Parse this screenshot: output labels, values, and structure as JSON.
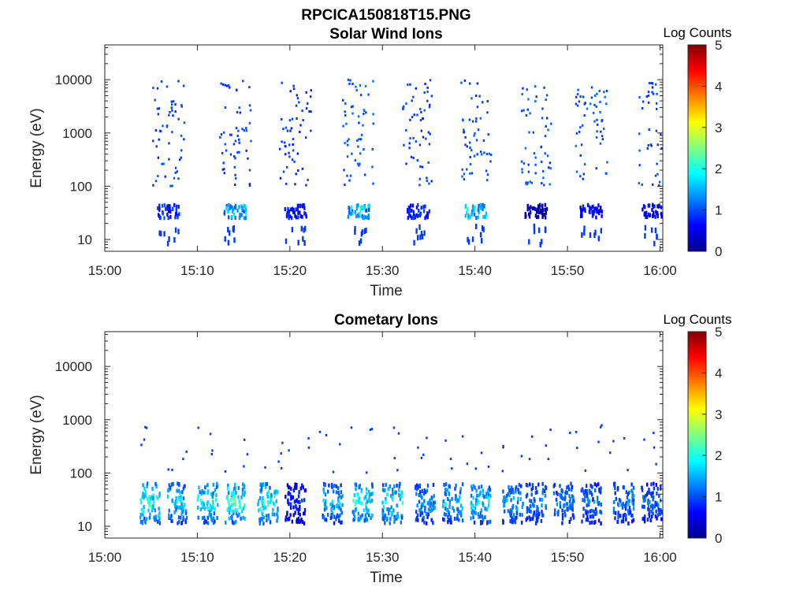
{
  "figure_title": "RPCICA150818T15.PNG",
  "chart_data": [
    {
      "type": "heatmap",
      "title": "Solar Wind Ions",
      "xlabel": "Time",
      "ylabel": "Energy (eV)",
      "x_range": [
        "15:00",
        "16:00"
      ],
      "x_ticks": [
        "15:00",
        "15:10",
        "15:20",
        "15:30",
        "15:40",
        "15:50",
        "16:00"
      ],
      "y_scale": "log",
      "y_range": [
        6,
        45000
      ],
      "y_ticks": [
        "10",
        "100",
        "1000",
        "10000"
      ],
      "colorbar": {
        "label": "Log Counts",
        "range": [
          0,
          5
        ],
        "ticks": [
          "0",
          "1",
          "2",
          "3",
          "4",
          "5"
        ],
        "colormap": "jet"
      },
      "grid": false,
      "bursts": [
        {
          "t": 6.8,
          "low": 1.1,
          "hi": 1.1
        },
        {
          "t": 14.0,
          "low": 1.9,
          "hi": 1.1
        },
        {
          "t": 20.5,
          "low": 0.9,
          "hi": 1.0
        },
        {
          "t": 27.3,
          "low": 2.0,
          "hi": 1.2
        },
        {
          "t": 33.8,
          "low": 1.0,
          "hi": 1.1
        },
        {
          "t": 40.0,
          "low": 2.1,
          "hi": 1.2
        },
        {
          "t": 46.5,
          "low": 0.3,
          "hi": 1.2
        },
        {
          "t": 52.5,
          "low": 0.8,
          "hi": 1.2
        },
        {
          "t": 59.2,
          "low": 0.8,
          "hi": 1.1
        }
      ]
    },
    {
      "type": "heatmap",
      "title": "Cometary Ions",
      "xlabel": "Time",
      "ylabel": "Energy (eV)",
      "x_range": [
        "15:00",
        "16:00"
      ],
      "x_ticks": [
        "15:00",
        "15:10",
        "15:20",
        "15:30",
        "15:40",
        "15:50",
        "16:00"
      ],
      "y_scale": "log",
      "y_range": [
        6,
        45000
      ],
      "y_ticks": [
        "10",
        "100",
        "1000",
        "10000"
      ],
      "colorbar": {
        "label": "Log Counts",
        "range": [
          0,
          5
        ],
        "ticks": [
          "0",
          "1",
          "2",
          "3",
          "4",
          "5"
        ],
        "colormap": "jet"
      },
      "grid": false,
      "bursts": [
        {
          "t": 4.8,
          "level": 2.4
        },
        {
          "t": 7.8,
          "level": 2.0
        },
        {
          "t": 11.0,
          "level": 2.3
        },
        {
          "t": 14.0,
          "level": 2.6
        },
        {
          "t": 17.5,
          "level": 2.4
        },
        {
          "t": 20.5,
          "level": 1.0
        },
        {
          "t": 24.5,
          "level": 2.0
        },
        {
          "t": 27.8,
          "level": 2.3
        },
        {
          "t": 31.0,
          "level": 2.2
        },
        {
          "t": 34.5,
          "level": 1.7
        },
        {
          "t": 37.5,
          "level": 2.0
        },
        {
          "t": 40.5,
          "level": 2.2
        },
        {
          "t": 44.0,
          "level": 1.8
        },
        {
          "t": 46.5,
          "level": 1.6
        },
        {
          "t": 49.5,
          "level": 1.6
        },
        {
          "t": 52.5,
          "level": 1.5
        },
        {
          "t": 56.0,
          "level": 1.6
        },
        {
          "t": 59.0,
          "level": 1.4
        }
      ]
    }
  ]
}
